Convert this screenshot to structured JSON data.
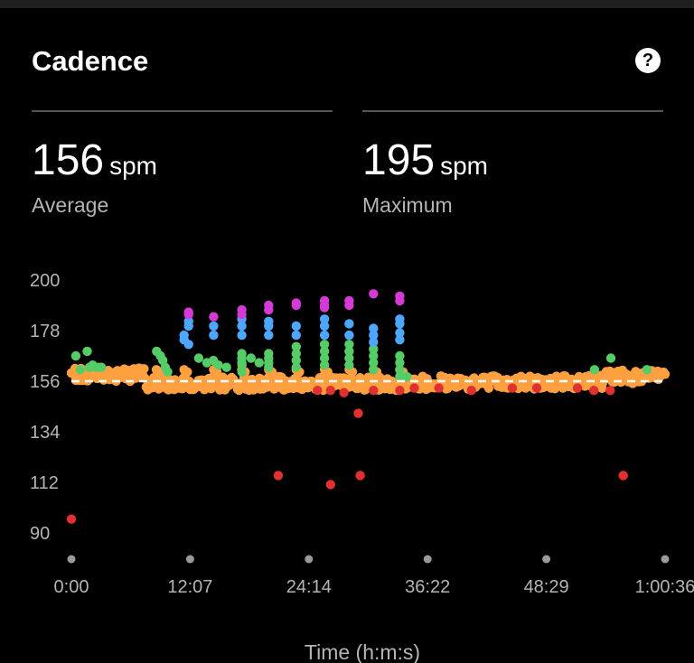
{
  "card": {
    "title": "Cadence",
    "help_icon": "question-circle-icon"
  },
  "stats": [
    {
      "value": "156",
      "unit": "spm",
      "label": "Average"
    },
    {
      "value": "195",
      "unit": "spm",
      "label": "Maximum"
    }
  ],
  "chart_data": {
    "type": "scatter",
    "title": "",
    "xlabel": "Time (h:m:s)",
    "ylabel": "",
    "x_ticks": [
      "0:00",
      "12:07",
      "24:14",
      "36:22",
      "48:29",
      "1:00:36"
    ],
    "y_ticks": [
      200,
      178,
      156,
      134,
      112,
      90
    ],
    "xlim_seconds": [
      0,
      3636
    ],
    "ylim": [
      90,
      200
    ],
    "reference_line": {
      "value": 156,
      "style": "dashed",
      "color": "#ffffff"
    },
    "colors": {
      "purple": "#d63ad6",
      "blue": "#4da6ff",
      "green": "#55cc66",
      "orange": "#ffa040",
      "red": "#e03030"
    },
    "series": [
      {
        "color": "purple",
        "points": [
          [
            718,
            186
          ],
          [
            718,
            185
          ],
          [
            871,
            184
          ],
          [
            1044,
            187
          ],
          [
            1044,
            185
          ],
          [
            1208,
            189
          ],
          [
            1208,
            187
          ],
          [
            1377,
            190
          ],
          [
            1377,
            189
          ],
          [
            1550,
            191
          ],
          [
            1550,
            189
          ],
          [
            1550,
            188
          ],
          [
            1701,
            191
          ],
          [
            1701,
            189
          ],
          [
            1850,
            194
          ],
          [
            2011,
            193
          ],
          [
            2011,
            191
          ]
        ]
      },
      {
        "color": "blue",
        "points": [
          [
            718,
            182
          ],
          [
            718,
            180
          ],
          [
            690,
            176
          ],
          [
            690,
            174
          ],
          [
            718,
            172
          ],
          [
            871,
            180
          ],
          [
            871,
            176
          ],
          [
            1044,
            183
          ],
          [
            1044,
            180
          ],
          [
            1044,
            176
          ],
          [
            1208,
            182
          ],
          [
            1208,
            180
          ],
          [
            1208,
            176
          ],
          [
            1377,
            180
          ],
          [
            1377,
            176
          ],
          [
            1550,
            183
          ],
          [
            1550,
            180
          ],
          [
            1550,
            176
          ],
          [
            1701,
            181
          ],
          [
            1701,
            176
          ],
          [
            1850,
            179
          ],
          [
            1850,
            176
          ],
          [
            1850,
            173
          ],
          [
            2011,
            183
          ],
          [
            2011,
            181
          ],
          [
            2011,
            177
          ],
          [
            2011,
            174
          ]
        ]
      },
      {
        "color": "green",
        "points": [
          [
            27,
            167
          ],
          [
            55,
            161
          ],
          [
            97,
            169
          ],
          [
            111,
            162
          ],
          [
            130,
            163
          ],
          [
            150,
            162
          ],
          [
            168,
            162
          ],
          [
            184,
            162
          ],
          [
            1045,
            163
          ],
          [
            1045,
            160
          ],
          [
            1044,
            168
          ],
          [
            1044,
            166
          ],
          [
            1044,
            164
          ],
          [
            1208,
            168
          ],
          [
            1208,
            166
          ],
          [
            1208,
            164
          ],
          [
            1208,
            162
          ],
          [
            1377,
            171
          ],
          [
            1377,
            168
          ],
          [
            1377,
            165
          ],
          [
            1377,
            162
          ],
          [
            1550,
            172
          ],
          [
            1550,
            169
          ],
          [
            1550,
            166
          ],
          [
            1550,
            163
          ],
          [
            1701,
            172
          ],
          [
            1701,
            169
          ],
          [
            1701,
            166
          ],
          [
            1701,
            163
          ],
          [
            1850,
            170
          ],
          [
            1850,
            167
          ],
          [
            1850,
            164
          ],
          [
            1850,
            161
          ],
          [
            2011,
            167
          ],
          [
            2011,
            164
          ],
          [
            2011,
            161
          ],
          [
            2011,
            158
          ],
          [
            3304,
            166
          ],
          [
            3204,
            161
          ],
          [
            3525,
            161
          ],
          [
            2055,
            158
          ],
          [
            522,
            169
          ],
          [
            545,
            167
          ],
          [
            560,
            165
          ],
          [
            575,
            162
          ],
          [
            590,
            160
          ],
          [
            780,
            166
          ],
          [
            830,
            164
          ],
          [
            870,
            165
          ],
          [
            900,
            163
          ],
          [
            950,
            162
          ],
          [
            1100,
            166
          ],
          [
            1150,
            164
          ]
        ]
      },
      {
        "color": "orange",
        "points": []
      },
      {
        "color": "red",
        "points": [
          [
            0,
            96
          ],
          [
            1267,
            115
          ],
          [
            1587,
            111
          ],
          [
            1769,
            115
          ],
          [
            1757,
            142
          ],
          [
            3380,
            115
          ],
          [
            1507,
            152
          ],
          [
            1587,
            152
          ],
          [
            1669,
            151
          ],
          [
            1850,
            152
          ],
          [
            2011,
            152
          ],
          [
            2100,
            153
          ],
          [
            2250,
            153
          ],
          [
            2450,
            152
          ],
          [
            2700,
            153
          ],
          [
            2850,
            153
          ],
          [
            3100,
            153
          ],
          [
            3200,
            152
          ],
          [
            3300,
            152
          ]
        ]
      }
    ]
  }
}
